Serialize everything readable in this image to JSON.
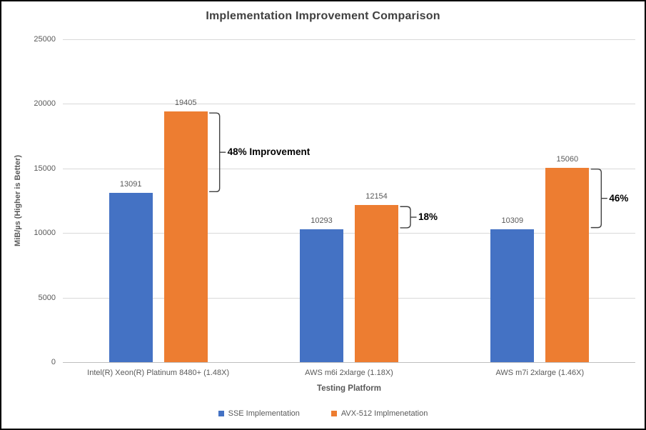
{
  "chart_data": {
    "type": "bar",
    "title": "Implementation Improvement Comparison",
    "categories": [
      "Intel(R) Xeon(R) Platinum 8480+ (1.48X)",
      "AWS m6i 2xlarge (1.18X)",
      "AWS m7i 2xlarge (1.46X)"
    ],
    "series": [
      {
        "name": "SSE Implementation",
        "color": "#4472C4",
        "values": [
          13091,
          10293,
          10309
        ]
      },
      {
        "name": "AVX-512 Implmenetation",
        "color": "#ED7D31",
        "values": [
          19405,
          12154,
          15060
        ]
      }
    ],
    "xlabel": "Testing Platform",
    "ylabel": "MiB/µs (Higher is Better)",
    "ylim": [
      0,
      25000
    ],
    "yticks": [
      0,
      5000,
      10000,
      15000,
      20000,
      25000
    ],
    "grid": true,
    "legend_position": "bottom",
    "annotations": [
      {
        "group": 0,
        "label": "48% Improvement"
      },
      {
        "group": 1,
        "label": "18%"
      },
      {
        "group": 2,
        "label": "46%"
      }
    ],
    "colors": {
      "gridline": "#d9d9d9",
      "axis_line": "#bfbfbf",
      "tick_text": "#595959",
      "title_text": "#404040",
      "annotation_text": "#000000",
      "bracket_stroke": "#404040"
    }
  }
}
